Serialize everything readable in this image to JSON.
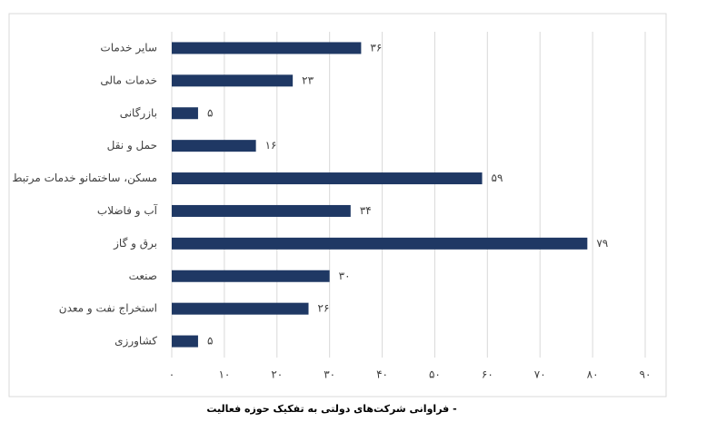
{
  "chart_data": {
    "type": "bar",
    "orientation": "horizontal",
    "caption": "- فراوانی شرکت‌های دولتی به تفکیک حوزه فعالیت",
    "categories": [
      "سایر خدمات",
      "خدمات مالی",
      "بازرگانی",
      "حمل و نقل",
      "مسکن، ساختمانو خدمات مرتبط",
      "آب و فاضلاب",
      "برق و گاز",
      "صنعت",
      "استخراج نفت و معدن",
      "کشاورزی"
    ],
    "values": [
      36,
      23,
      5,
      16,
      59,
      34,
      79,
      30,
      26,
      5
    ],
    "value_labels": [
      "۳۶",
      "۲۳",
      "۵",
      "۱۶",
      "۵۹",
      "۳۴",
      "۷۹",
      "۳۰",
      "۲۶",
      "۵"
    ],
    "color": "#1f3864",
    "xlim": [
      0,
      90
    ],
    "xticks": [
      {
        "value": 0,
        "label": "۰"
      },
      {
        "value": 10,
        "label": "۱۰"
      },
      {
        "value": 20,
        "label": "۲۰"
      },
      {
        "value": 30,
        "label": "۳۰"
      },
      {
        "value": 40,
        "label": "۴۰"
      },
      {
        "value": 50,
        "label": "۵۰"
      },
      {
        "value": 60,
        "label": "۶۰"
      },
      {
        "value": 70,
        "label": "۷۰"
      },
      {
        "value": 80,
        "label": "۸۰"
      },
      {
        "value": 90,
        "label": "۹۰"
      }
    ],
    "grid": true
  }
}
